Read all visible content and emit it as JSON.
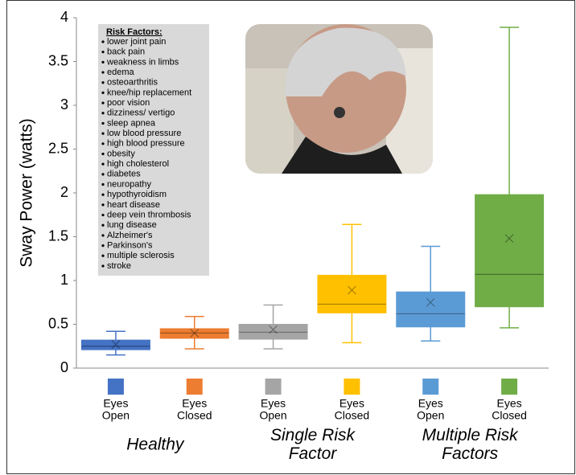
{
  "chart_data": {
    "type": "box",
    "ylabel": "Sway Power (watts)",
    "ylim": [
      0,
      4
    ],
    "yticks": [
      0,
      0.5,
      1,
      1.5,
      2,
      2.5,
      3,
      3.5,
      4
    ],
    "boxes": [
      {
        "label": [
          "Eyes",
          "Open"
        ],
        "color": "#4472c4",
        "min": 0.15,
        "q1": 0.21,
        "median": 0.25,
        "q3": 0.32,
        "max": 0.42,
        "mean": 0.27
      },
      {
        "label": [
          "Eyes",
          "Closed"
        ],
        "color": "#ed7d31",
        "min": 0.22,
        "q1": 0.34,
        "median": 0.4,
        "q3": 0.45,
        "max": 0.59,
        "mean": 0.4
      },
      {
        "label": [
          "Eyes",
          "Open"
        ],
        "color": "#a5a5a5",
        "min": 0.22,
        "q1": 0.33,
        "median": 0.41,
        "q3": 0.5,
        "max": 0.72,
        "mean": 0.44
      },
      {
        "label": [
          "Eyes",
          "Closed"
        ],
        "color": "#ffc000",
        "min": 0.29,
        "q1": 0.63,
        "median": 0.73,
        "q3": 1.06,
        "max": 1.64,
        "mean": 0.89
      },
      {
        "label": [
          "Eyes",
          "Open"
        ],
        "color": "#5b9bd5",
        "min": 0.31,
        "q1": 0.47,
        "median": 0.62,
        "q3": 0.87,
        "max": 1.39,
        "mean": 0.75
      },
      {
        "label": [
          "Eyes",
          "Closed"
        ],
        "color": "#70ad47",
        "min": 0.46,
        "q1": 0.7,
        "median": 1.07,
        "q3": 1.98,
        "max": 3.89,
        "mean": 1.48
      }
    ],
    "groups": [
      {
        "label": [
          "Healthy"
        ]
      },
      {
        "label": [
          "Single Risk",
          "Factor"
        ]
      },
      {
        "label": [
          "Multiple Risk",
          "Factors"
        ]
      }
    ],
    "risk_factors": {
      "title": "Risk Factors:",
      "items": [
        "lower joint pain",
        "back pain",
        "weakness in limbs",
        "edema",
        "osteoarthritis",
        "knee/hip replacement",
        "poor vision",
        "dizziness/ vertigo",
        "sleep apnea",
        "low blood pressure",
        "high blood pressure",
        "obesity",
        "high cholesterol",
        "diabetes",
        "neuropathy",
        "hypothyroidism",
        "heart disease",
        "deep vein thrombosis",
        "lung disease",
        "Alzheimer's",
        "Parkinson's",
        "multiple sclerosis",
        "stroke"
      ]
    }
  }
}
